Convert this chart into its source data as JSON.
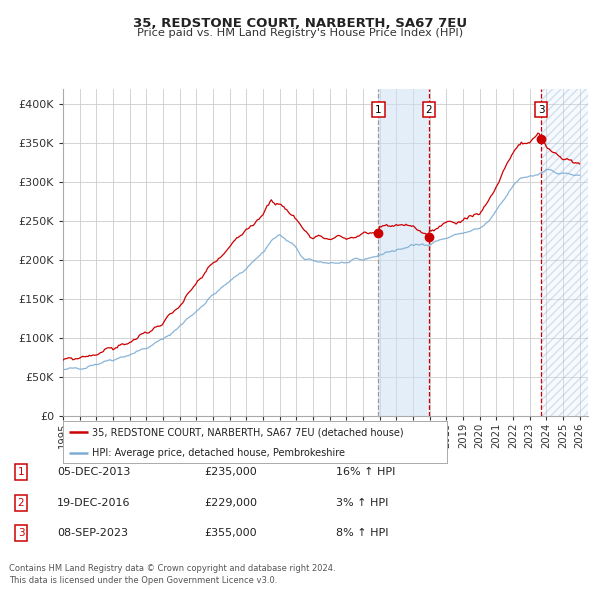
{
  "title": "35, REDSTONE COURT, NARBERTH, SA67 7EU",
  "subtitle": "Price paid vs. HM Land Registry's House Price Index (HPI)",
  "xlim": [
    1995.0,
    2026.5
  ],
  "ylim": [
    0,
    420000
  ],
  "yticks": [
    0,
    50000,
    100000,
    150000,
    200000,
    250000,
    300000,
    350000,
    400000
  ],
  "ytick_labels": [
    "£0",
    "£50K",
    "£100K",
    "£150K",
    "£200K",
    "£250K",
    "£300K",
    "£350K",
    "£400K"
  ],
  "xtick_years": [
    1995,
    1996,
    1997,
    1998,
    1999,
    2000,
    2001,
    2002,
    2003,
    2004,
    2005,
    2006,
    2007,
    2008,
    2009,
    2010,
    2011,
    2012,
    2013,
    2014,
    2015,
    2016,
    2017,
    2018,
    2019,
    2020,
    2021,
    2022,
    2023,
    2024,
    2025,
    2026
  ],
  "red_color": "#cc0000",
  "blue_color": "#7dadd4",
  "sale_dates": [
    2013.92,
    2016.96,
    2023.68
  ],
  "sale_prices": [
    235000,
    229000,
    355000
  ],
  "sale_labels": [
    "1",
    "2",
    "3"
  ],
  "shade_start": 2013.92,
  "shade_end": 2016.96,
  "vline1": 2013.92,
  "vline2": 2016.96,
  "vline3": 2023.68,
  "legend_entries": [
    "35, REDSTONE COURT, NARBERTH, SA67 7EU (detached house)",
    "HPI: Average price, detached house, Pembrokeshire"
  ],
  "table_data": [
    [
      "1",
      "05-DEC-2013",
      "£235,000",
      "16% ↑ HPI"
    ],
    [
      "2",
      "19-DEC-2016",
      "£229,000",
      "3% ↑ HPI"
    ],
    [
      "3",
      "08-SEP-2023",
      "£355,000",
      "8% ↑ HPI"
    ]
  ],
  "footnote": "Contains HM Land Registry data © Crown copyright and database right 2024.\nThis data is licensed under the Open Government Licence v3.0.",
  "background_color": "#ffffff",
  "plot_bg_color": "#ffffff",
  "grid_color": "#cccccc"
}
